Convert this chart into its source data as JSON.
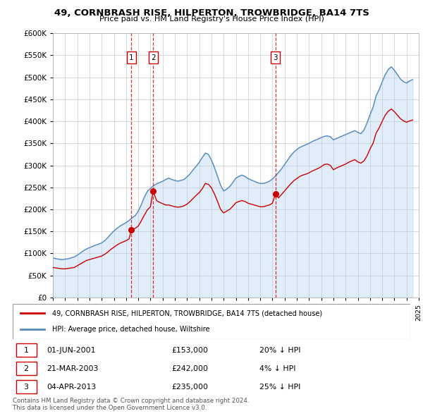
{
  "title": "49, CORNBRASH RISE, HILPERTON, TROWBRIDGE, BA14 7TS",
  "subtitle": "Price paid vs. HM Land Registry's House Price Index (HPI)",
  "legend_house": "49, CORNBRASH RISE, HILPERTON, TROWBRIDGE, BA14 7TS (detached house)",
  "legend_hpi": "HPI: Average price, detached house, Wiltshire",
  "footer1": "Contains HM Land Registry data © Crown copyright and database right 2024.",
  "footer2": "This data is licensed under the Open Government Licence v3.0.",
  "transactions": [
    {
      "num": 1,
      "date": "01-JUN-2001",
      "price": "£153,000",
      "pct": "20% ↓ HPI"
    },
    {
      "num": 2,
      "date": "21-MAR-2003",
      "price": "£242,000",
      "pct": "4% ↓ HPI"
    },
    {
      "num": 3,
      "date": "04-APR-2013",
      "price": "£235,000",
      "pct": "25% ↓ HPI"
    }
  ],
  "transaction_markers": [
    {
      "num": 1,
      "year": 2001.42,
      "price_paid": 153000
    },
    {
      "num": 2,
      "year": 2003.22,
      "price_paid": 242000
    },
    {
      "num": 3,
      "year": 2013.25,
      "price_paid": 235000
    }
  ],
  "house_color": "#cc0000",
  "hpi_color": "#5588bb",
  "hpi_fill_color": "#aaccee",
  "vline_color": "#cc0000",
  "ylim": [
    0,
    600000
  ],
  "yticks": [
    0,
    50000,
    100000,
    150000,
    200000,
    250000,
    300000,
    350000,
    400000,
    450000,
    500000,
    550000,
    600000
  ],
  "xlim": [
    1995,
    2025
  ],
  "hpi_data_years": [
    1995.0,
    1995.25,
    1995.5,
    1995.75,
    1996.0,
    1996.25,
    1996.5,
    1996.75,
    1997.0,
    1997.25,
    1997.5,
    1997.75,
    1998.0,
    1998.25,
    1998.5,
    1998.75,
    1999.0,
    1999.25,
    1999.5,
    1999.75,
    2000.0,
    2000.25,
    2000.5,
    2000.75,
    2001.0,
    2001.25,
    2001.5,
    2001.75,
    2002.0,
    2002.25,
    2002.5,
    2002.75,
    2003.0,
    2003.25,
    2003.5,
    2003.75,
    2004.0,
    2004.25,
    2004.5,
    2004.75,
    2005.0,
    2005.25,
    2005.5,
    2005.75,
    2006.0,
    2006.25,
    2006.5,
    2006.75,
    2007.0,
    2007.25,
    2007.5,
    2007.75,
    2008.0,
    2008.25,
    2008.5,
    2008.75,
    2009.0,
    2009.25,
    2009.5,
    2009.75,
    2010.0,
    2010.25,
    2010.5,
    2010.75,
    2011.0,
    2011.25,
    2011.5,
    2011.75,
    2012.0,
    2012.25,
    2012.5,
    2012.75,
    2013.0,
    2013.25,
    2013.5,
    2013.75,
    2014.0,
    2014.25,
    2014.5,
    2014.75,
    2015.0,
    2015.25,
    2015.5,
    2015.75,
    2016.0,
    2016.25,
    2016.5,
    2016.75,
    2017.0,
    2017.25,
    2017.5,
    2017.75,
    2018.0,
    2018.25,
    2018.5,
    2018.75,
    2019.0,
    2019.25,
    2019.5,
    2019.75,
    2020.0,
    2020.25,
    2020.5,
    2020.75,
    2021.0,
    2021.25,
    2021.5,
    2021.75,
    2022.0,
    2022.25,
    2022.5,
    2022.75,
    2023.0,
    2023.25,
    2023.5,
    2023.75,
    2024.0,
    2024.25,
    2024.5
  ],
  "hpi_data_values": [
    90000,
    88000,
    87000,
    86000,
    87000,
    88000,
    90000,
    92000,
    96000,
    101000,
    106000,
    110000,
    113000,
    116000,
    119000,
    121000,
    124000,
    129000,
    136000,
    144000,
    151000,
    157000,
    162000,
    166000,
    170000,
    175000,
    181000,
    186000,
    196000,
    211000,
    228000,
    241000,
    248000,
    254000,
    258000,
    261000,
    264000,
    268000,
    271000,
    268000,
    266000,
    264000,
    266000,
    268000,
    274000,
    281000,
    290000,
    298000,
    307000,
    318000,
    328000,
    325000,
    312000,
    295000,
    275000,
    255000,
    242000,
    246000,
    252000,
    261000,
    271000,
    275000,
    278000,
    275000,
    270000,
    267000,
    264000,
    261000,
    259000,
    259000,
    261000,
    264000,
    269000,
    276000,
    284000,
    292000,
    302000,
    312000,
    322000,
    330000,
    336000,
    341000,
    344000,
    347000,
    350000,
    354000,
    357000,
    360000,
    363000,
    366000,
    367000,
    365000,
    358000,
    361000,
    364000,
    367000,
    370000,
    373000,
    376000,
    379000,
    375000,
    372000,
    380000,
    396000,
    415000,
    432000,
    458000,
    472000,
    490000,
    506000,
    518000,
    524000,
    516000,
    506000,
    496000,
    490000,
    487000,
    492000,
    495000
  ],
  "house_data_years": [
    1995.0,
    1995.25,
    1995.5,
    1995.75,
    1996.0,
    1996.25,
    1996.5,
    1996.75,
    1997.0,
    1997.25,
    1997.5,
    1997.75,
    1998.0,
    1998.25,
    1998.5,
    1998.75,
    1999.0,
    1999.25,
    1999.5,
    1999.75,
    2000.0,
    2000.25,
    2000.5,
    2000.75,
    2001.0,
    2001.25,
    2001.42,
    2001.42,
    2001.75,
    2002.0,
    2002.25,
    2002.5,
    2002.75,
    2003.0,
    2003.22,
    2003.22,
    2003.5,
    2003.75,
    2004.0,
    2004.25,
    2004.5,
    2004.75,
    2005.0,
    2005.25,
    2005.5,
    2005.75,
    2006.0,
    2006.25,
    2006.5,
    2006.75,
    2007.0,
    2007.25,
    2007.5,
    2007.75,
    2008.0,
    2008.25,
    2008.5,
    2008.75,
    2009.0,
    2009.25,
    2009.5,
    2009.75,
    2010.0,
    2010.25,
    2010.5,
    2010.75,
    2011.0,
    2011.25,
    2011.5,
    2011.75,
    2012.0,
    2012.25,
    2012.5,
    2012.75,
    2013.0,
    2013.25,
    2013.25,
    2013.5,
    2013.75,
    2014.0,
    2014.25,
    2014.5,
    2014.75,
    2015.0,
    2015.25,
    2015.5,
    2015.75,
    2016.0,
    2016.25,
    2016.5,
    2016.75,
    2017.0,
    2017.25,
    2017.5,
    2017.75,
    2018.0,
    2018.25,
    2018.5,
    2018.75,
    2019.0,
    2019.25,
    2019.5,
    2019.75,
    2020.0,
    2020.25,
    2020.5,
    2020.75,
    2021.0,
    2021.25,
    2021.5,
    2021.75,
    2022.0,
    2022.25,
    2022.5,
    2022.75,
    2023.0,
    2023.25,
    2023.5,
    2023.75,
    2024.0,
    2024.25,
    2024.5
  ],
  "house_data_values": [
    68000,
    67000,
    66000,
    65000,
    65000,
    66000,
    67000,
    68000,
    72000,
    76000,
    80000,
    84000,
    86000,
    88000,
    90000,
    92000,
    94000,
    98000,
    103000,
    109000,
    114000,
    119000,
    123000,
    126000,
    129000,
    133000,
    153000,
    153000,
    157000,
    162000,
    174000,
    187000,
    199000,
    206000,
    242000,
    242000,
    220000,
    216000,
    213000,
    210000,
    210000,
    208000,
    206000,
    205000,
    206000,
    208000,
    212000,
    218000,
    225000,
    232000,
    238000,
    247000,
    259000,
    257000,
    249000,
    235000,
    218000,
    200000,
    192000,
    196000,
    200000,
    207000,
    215000,
    218000,
    220000,
    218000,
    214000,
    212000,
    210000,
    208000,
    206000,
    206000,
    208000,
    210000,
    214000,
    235000,
    235000,
    226000,
    234000,
    242000,
    250000,
    258000,
    265000,
    270000,
    275000,
    278000,
    280000,
    283000,
    287000,
    290000,
    293000,
    297000,
    302000,
    303000,
    300000,
    290000,
    294000,
    297000,
    300000,
    303000,
    307000,
    310000,
    313000,
    308000,
    305000,
    310000,
    321000,
    337000,
    350000,
    373000,
    385000,
    400000,
    414000,
    423000,
    428000,
    422000,
    414000,
    406000,
    401000,
    398000,
    401000,
    403000
  ]
}
